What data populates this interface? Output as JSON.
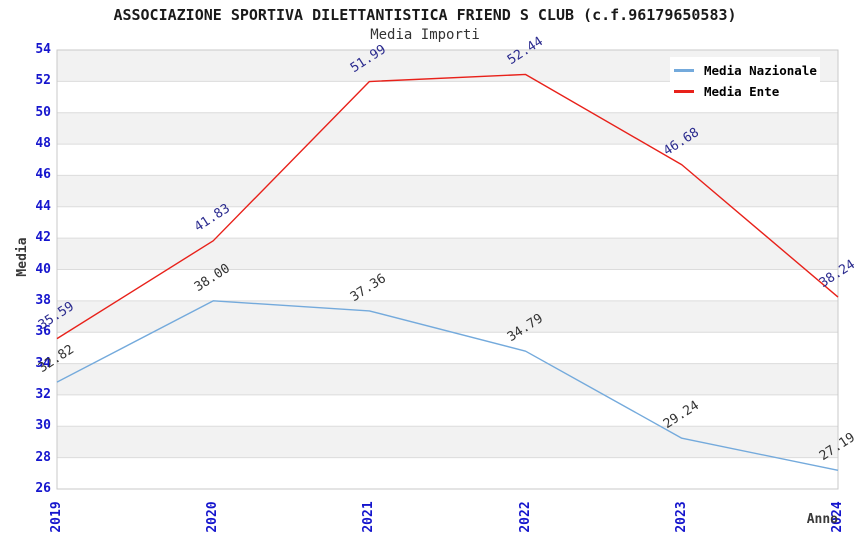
{
  "title": "ASSOCIAZIONE SPORTIVA DILETTANTISTICA FRIEND S CLUB (c.f.96179650583)",
  "subtitle": "Media Importi",
  "legend": {
    "items": [
      {
        "label": "Media Nazionale",
        "color": "#74aadc"
      },
      {
        "label": "Media Ente",
        "color": "#e8211a"
      }
    ]
  },
  "chart_data": {
    "type": "line",
    "x": [
      2019,
      2020,
      2021,
      2022,
      2023,
      2024
    ],
    "categories": [
      "2019",
      "2020",
      "2021",
      "2022",
      "2023",
      "2024"
    ],
    "series": [
      {
        "name": "Media Nazionale",
        "color": "#74aadc",
        "label_color": "#333333",
        "values": [
          32.82,
          38.0,
          37.36,
          34.79,
          29.24,
          27.19
        ],
        "labels": [
          "32.82",
          "38.00",
          "37.36",
          "34.79",
          "29.24",
          "27.19"
        ]
      },
      {
        "name": "Media Ente",
        "color": "#e8211a",
        "label_color": "#2a2a8e",
        "values": [
          35.59,
          41.83,
          51.99,
          52.44,
          46.68,
          38.24
        ],
        "labels": [
          "35.59",
          "41.83",
          "51.99",
          "52.44",
          "46.68",
          "38.24"
        ]
      }
    ],
    "title": "ASSOCIAZIONE SPORTIVA DILETTANTISTICA FRIEND S CLUB (c.f.96179650583)",
    "subtitle": "Media Importi",
    "xlabel": "Anno",
    "ylabel": "Media",
    "ylim": [
      26,
      54
    ],
    "ytick_step": 2,
    "yticks": [
      26,
      28,
      30,
      32,
      34,
      36,
      38,
      40,
      42,
      44,
      46,
      48,
      50,
      52,
      54
    ],
    "grid": true,
    "legend_position": "top-right",
    "colors": {
      "tick_label": "#1515cd",
      "band_gray": "#f2f2f2",
      "band_white": "#ffffff",
      "gridline": "#dcdcdc",
      "plot_border": "#c9c9c9"
    }
  }
}
